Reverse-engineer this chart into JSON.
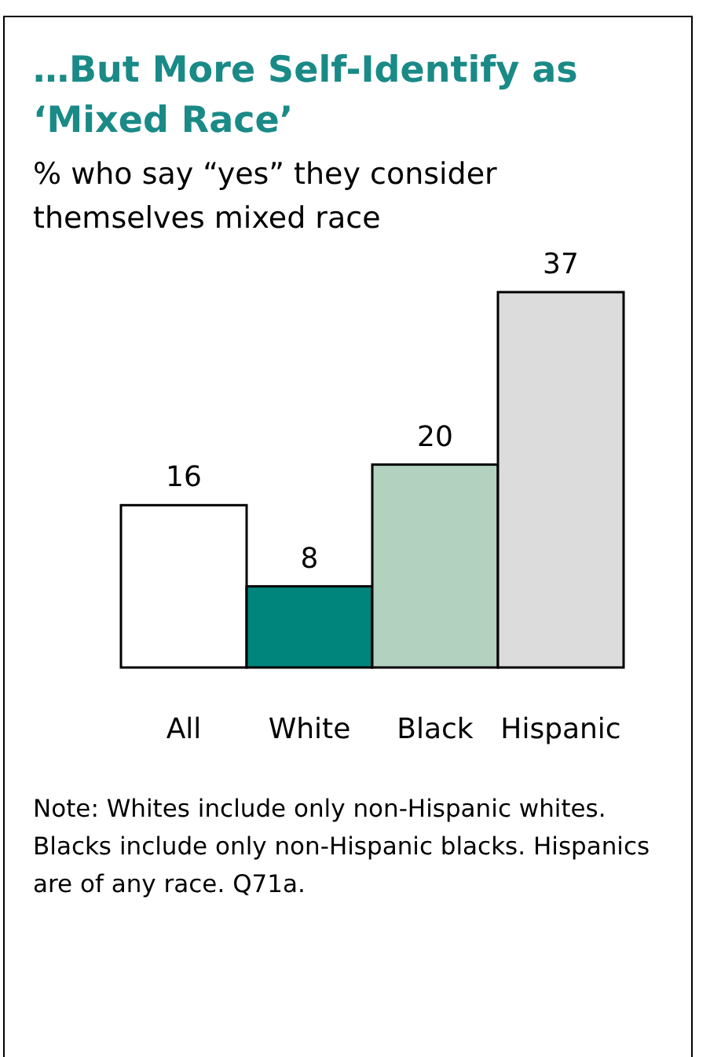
{
  "chart_data": {
    "type": "bar",
    "title": "…But More Self-Identify as ‘Mixed Race’",
    "subtitle": "% who say “yes” they consider themselves mixed race",
    "categories": [
      "All",
      "White",
      "Black",
      "Hispanic"
    ],
    "values": [
      16,
      8,
      20,
      37
    ],
    "colors": [
      "#ffffff",
      "#00857d",
      "#b3d1bf",
      "#dcdcdc"
    ],
    "data_labels": true,
    "annotations": [
      "Note: Whites include only non-Hispanic whites. Blacks include only non-Hispanic blacks. Hispanics are of any race. Q71a."
    ]
  }
}
